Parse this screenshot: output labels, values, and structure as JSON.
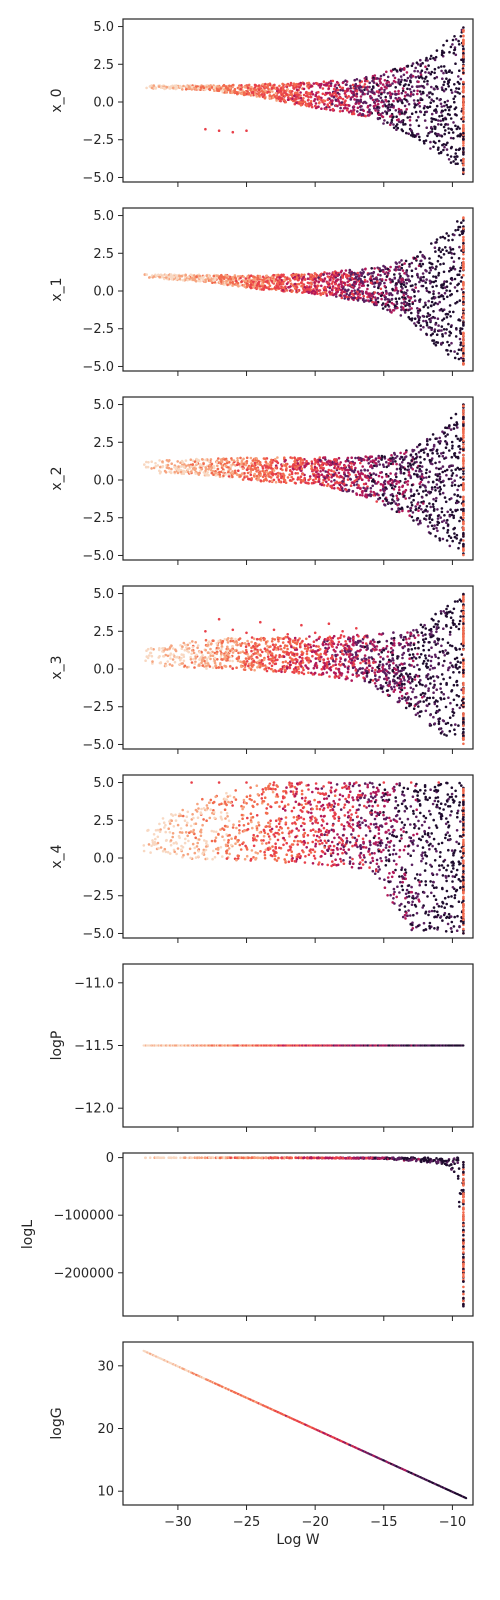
{
  "palette": {
    "dark": "#1f0c2e",
    "purple": "#5a1f5f",
    "magenta": "#b0195a",
    "red": "#e8404a",
    "orange": "#f26b4e",
    "peach": "#f6a47f",
    "light": "#f8d8c2",
    "axis": "#262626",
    "background": "#ffffff"
  },
  "chart_data": [
    {
      "type": "scatter",
      "ylabel": "x_0",
      "xlabel": "",
      "xlim": [
        -34,
        -8.5
      ],
      "ylim": [
        -5.3,
        5.5
      ],
      "yticks": [
        5.0,
        2.5,
        0.0,
        -2.5,
        -5.0
      ],
      "ytick_labels": [
        "5.0",
        "2.5",
        "0.0",
        "−2.5",
        "−5.0"
      ],
      "envelope": {
        "x": [
          -32.5,
          -28,
          -24,
          -20,
          -16,
          -13,
          -11,
          -9.2
        ],
        "upper": [
          1.1,
          1.1,
          1.2,
          1.3,
          1.7,
          2.5,
          3.6,
          5.0
        ],
        "lower": [
          0.9,
          0.8,
          0.3,
          -0.4,
          -1.0,
          -2.3,
          -3.5,
          -4.9
        ]
      },
      "outliers_x": [
        -28,
        -27,
        -26,
        -25
      ],
      "outliers_y": [
        -1.8,
        -1.9,
        -2.0,
        -1.9
      ]
    },
    {
      "type": "scatter",
      "ylabel": "x_1",
      "xlabel": "",
      "xlim": [
        -34,
        -8.5
      ],
      "ylim": [
        -5.3,
        5.5
      ],
      "yticks": [
        5.0,
        2.5,
        0.0,
        -2.5,
        -5.0
      ],
      "ytick_labels": [
        "5.0",
        "2.5",
        "0.0",
        "−2.5",
        "−5.0"
      ],
      "envelope": {
        "x": [
          -32.5,
          -28,
          -24,
          -20,
          -16,
          -13,
          -11,
          -9.2
        ],
        "upper": [
          1.1,
          1.1,
          1.0,
          1.2,
          1.5,
          2.2,
          3.5,
          5.0
        ],
        "lower": [
          0.9,
          0.6,
          0.1,
          -0.2,
          -0.8,
          -2.0,
          -3.8,
          -4.9
        ]
      },
      "outliers_x": [],
      "outliers_y": []
    },
    {
      "type": "scatter",
      "ylabel": "x_2",
      "xlabel": "",
      "xlim": [
        -34,
        -8.5
      ],
      "ylim": [
        -5.3,
        5.5
      ],
      "yticks": [
        5.0,
        2.5,
        0.0,
        -2.5,
        -5.0
      ],
      "ytick_labels": [
        "5.0",
        "2.5",
        "0.0",
        "−2.5",
        "−5.0"
      ],
      "envelope": {
        "x": [
          -32.5,
          -28,
          -24,
          -20,
          -16,
          -13,
          -11,
          -9.2
        ],
        "upper": [
          1.3,
          1.4,
          1.5,
          1.5,
          1.6,
          2.0,
          3.3,
          5.0
        ],
        "lower": [
          0.5,
          0.3,
          -0.1,
          -0.3,
          -1.2,
          -2.6,
          -4.0,
          -5.0
        ]
      },
      "outliers_x": [],
      "outliers_y": []
    },
    {
      "type": "scatter",
      "ylabel": "x_3",
      "xlabel": "",
      "xlim": [
        -34,
        -8.5
      ],
      "ylim": [
        -5.3,
        5.5
      ],
      "yticks": [
        5.0,
        2.5,
        0.0,
        -2.5,
        -5.0
      ],
      "ytick_labels": [
        "5.0",
        "2.5",
        "0.0",
        "−2.5",
        "−5.0"
      ],
      "envelope": {
        "x": [
          -32.5,
          -28,
          -24,
          -20,
          -16,
          -13,
          -11,
          -9.2
        ],
        "upper": [
          1.3,
          2.0,
          2.1,
          2.2,
          2.3,
          2.5,
          3.8,
          5.0
        ],
        "lower": [
          0.3,
          0.0,
          -0.1,
          -0.4,
          -1.0,
          -2.8,
          -4.2,
          -5.0
        ]
      },
      "outliers_x": [
        -28,
        -27,
        -26,
        -25,
        -24,
        -23,
        -22,
        -21,
        -20,
        -19,
        -18,
        -17
      ],
      "outliers_y": [
        2.5,
        3.3,
        2.6,
        2.4,
        3.1,
        2.6,
        2.3,
        2.9,
        2.4,
        3.0,
        2.5,
        2.7
      ]
    },
    {
      "type": "scatter",
      "ylabel": "x_4",
      "xlabel": "",
      "xlim": [
        -34,
        -8.5
      ],
      "ylim": [
        -5.3,
        5.5
      ],
      "yticks": [
        5.0,
        2.5,
        0.0,
        -2.5,
        -5.0
      ],
      "ytick_labels": [
        "5.0",
        "2.5",
        "0.0",
        "−2.5",
        "−5.0"
      ],
      "envelope": {
        "x": [
          -32.5,
          -28,
          -24,
          -20,
          -16,
          -13,
          -11,
          -9.2
        ],
        "upper": [
          2.0,
          4.0,
          5.0,
          5.0,
          5.0,
          5.0,
          5.0,
          5.0
        ],
        "lower": [
          0.1,
          -0.1,
          -0.2,
          -0.4,
          -0.8,
          -4.8,
          -4.9,
          -5.0
        ]
      },
      "outliers_x": [
        -29,
        -27,
        -25,
        -23,
        -21,
        -19,
        -17,
        -15,
        -13,
        -11
      ],
      "outliers_y": [
        5.0,
        5.0,
        5.0,
        5.0,
        5.0,
        5.0,
        5.0,
        5.0,
        5.0,
        5.0
      ]
    },
    {
      "type": "scatter",
      "ylabel": "logP",
      "xlabel": "",
      "xlim": [
        -34,
        -8.5
      ],
      "ylim": [
        -12.15,
        -10.85
      ],
      "yticks": [
        -11.0,
        -11.5,
        -12.0
      ],
      "ytick_labels": [
        "−11.0",
        "−11.5",
        "−12.0"
      ],
      "line": {
        "x": [
          -32.5,
          -9.2
        ],
        "y": [
          -11.5,
          -11.5
        ]
      }
    },
    {
      "type": "scatter",
      "ylabel": "logL",
      "xlabel": "",
      "xlim": [
        -34,
        -8.5
      ],
      "ylim": [
        -275000,
        8000
      ],
      "yticks": [
        0,
        -100000,
        -200000
      ],
      "ytick_labels": [
        "0",
        "−100000",
        "−200000"
      ],
      "envelope": {
        "x": [
          -32.5,
          -20,
          -15,
          -12,
          -10.5,
          -9.6,
          -9.2
        ],
        "upper": [
          0,
          0,
          0,
          0,
          0,
          0,
          0
        ],
        "lower": [
          -300,
          -800,
          -2000,
          -8000,
          -12000,
          -30000,
          -260000
        ]
      }
    },
    {
      "type": "scatter",
      "ylabel": "logG",
      "xlabel": "Log W",
      "xlim": [
        -34,
        -8.5
      ],
      "ylim": [
        7.8,
        33.8
      ],
      "yticks": [
        30,
        20,
        10
      ],
      "ytick_labels": [
        "30",
        "20",
        "10"
      ],
      "xticks": [
        -30,
        -25,
        -20,
        -15,
        -10
      ],
      "xtick_labels": [
        "−30",
        "−25",
        "−20",
        "−15",
        "−10"
      ],
      "line": {
        "x": [
          -32.5,
          -9.0
        ],
        "y": [
          32.4,
          8.9
        ]
      }
    }
  ]
}
